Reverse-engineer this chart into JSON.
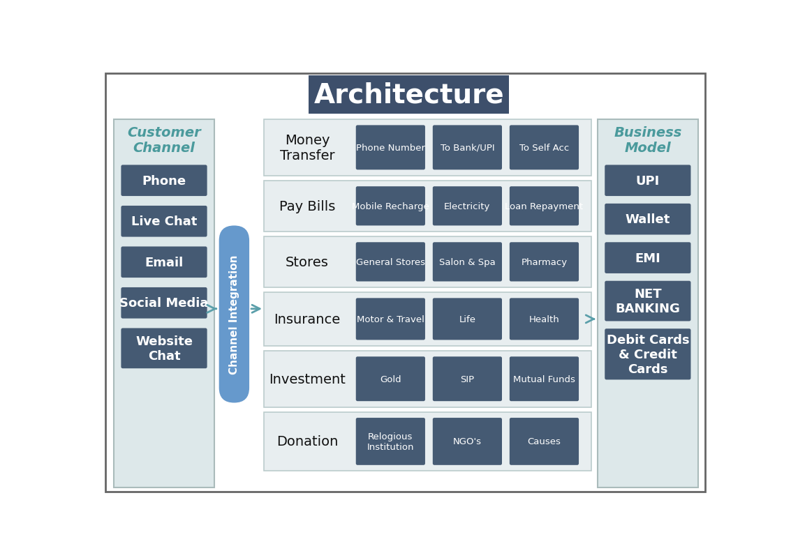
{
  "title": "Architecture",
  "title_bg": "#3d4f6b",
  "title_text_color": "#ffffff",
  "background_color": "#ffffff",
  "outer_border_color": "#666666",
  "customer_channel": {
    "label": "Customer\nChannel",
    "label_color": "#4a9a9c",
    "box_bg": "#dde8ea",
    "box_border": "#aabbbb",
    "items": [
      "Phone",
      "Live Chat",
      "Email",
      "Social Media",
      "Website\nChat"
    ],
    "item_bg": "#455a73",
    "item_text_color": "#ffffff"
  },
  "business_model": {
    "label": "Business\nModel",
    "label_color": "#4a9a9c",
    "box_bg": "#dde8ea",
    "box_border": "#aabbbb",
    "items": [
      "UPI",
      "Wallet",
      "EMI",
      "NET\nBANKING",
      "Debit Cards\n& Credit\nCards"
    ],
    "item_bg": "#455a73",
    "item_text_color": "#ffffff"
  },
  "channel_integration": {
    "label": "Channel Integration",
    "bg": "#6699cc",
    "text_color": "#ffffff"
  },
  "architecture_rows": [
    {
      "label": "Money\nTransfer",
      "bg": "#e8eef0",
      "border": "#bbcccc",
      "items": [
        "Phone Number",
        "To Bank/UPI",
        "To Self Acc"
      ]
    },
    {
      "label": "Pay Bills",
      "bg": "#e8eef0",
      "border": "#bbcccc",
      "items": [
        "Mobile Recharge",
        "Electricity",
        "Loan Repayment"
      ]
    },
    {
      "label": "Stores",
      "bg": "#e8eef0",
      "border": "#bbcccc",
      "items": [
        "General Stores",
        "Salon & Spa",
        "Pharmacy"
      ]
    },
    {
      "label": "Insurance",
      "bg": "#e8eef0",
      "border": "#bbcccc",
      "items": [
        "Motor & Travel",
        "Life",
        "Health"
      ]
    },
    {
      "label": "Investment",
      "bg": "#e8eef0",
      "border": "#bbcccc",
      "items": [
        "Gold",
        "SIP",
        "Mutual Funds"
      ]
    },
    {
      "label": "Donation",
      "bg": "#e8eef0",
      "border": "#bbcccc",
      "items": [
        "Relogious\nInstitution",
        "NGO's",
        "Causes"
      ]
    }
  ],
  "arch_item_bg": "#455a73",
  "arch_item_text_color": "#ffffff",
  "arch_label_color": "#111111",
  "arrow_color": "#5b9faa"
}
